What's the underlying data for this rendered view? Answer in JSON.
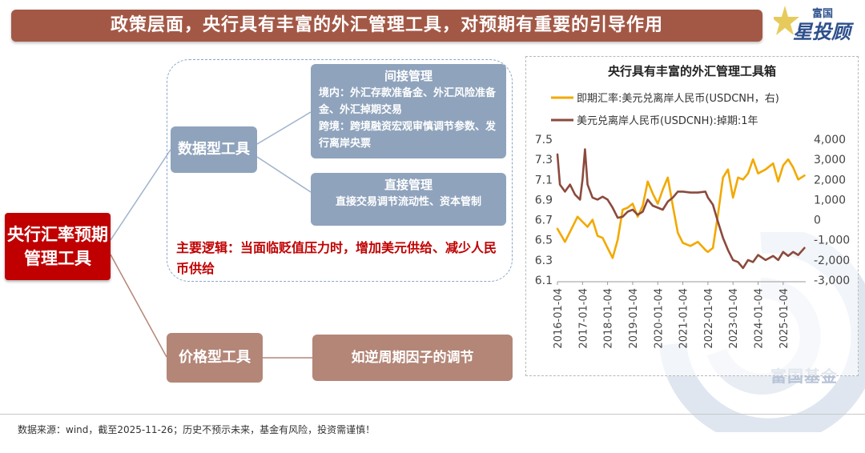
{
  "header": {
    "title": "政策层面，央行具有丰富的外汇管理工具，对预期有重要的引导作用",
    "brand_top": "富国",
    "brand_main": "星投顾"
  },
  "watermark": {
    "text": "富国基金"
  },
  "diagram": {
    "root": "央行汇率预期管理工具",
    "data_tools": "数据型工具",
    "indirect": {
      "title": "间接管理",
      "line1": "境内：外汇存款准备金、外汇风险准备金、外汇掉期交易",
      "line2": "跨境：跨境融资宏观审慎调节参数、发行离岸央票"
    },
    "direct": {
      "title": "直接管理",
      "line1": "直接交易调节流动性、资本管制"
    },
    "logic": "主要逻辑：当面临贬值压力时，增加美元供给、减少人民币供给",
    "price_tools": "价格型工具",
    "countercyclical": "如逆周期因子的调节"
  },
  "colors": {
    "banner": "#a35846",
    "root": "#c00000",
    "data_box": "#8fa3bc",
    "price_box": "#b38677",
    "forward_line": "#f2a900",
    "swap_line": "#8b4a3c"
  },
  "chart_data": {
    "type": "line",
    "title": "央行具有丰富的外汇管理工具箱",
    "x_ticks": [
      "2016-01-04",
      "2017-01-04",
      "2018-01-04",
      "2019-01-04",
      "2020-01-04",
      "2021-01-04",
      "2022-01-04",
      "2023-01-04",
      "2024-01-04",
      "2025-01-04"
    ],
    "left_axis": {
      "ticks": [
        "7.5",
        "7.3",
        "7.1",
        "6.9",
        "6.7",
        "6.5",
        "6.3",
        "6.1"
      ],
      "range": [
        6.1,
        7.5
      ]
    },
    "right_axis": {
      "ticks": [
        "4,000",
        "3,000",
        "2,000",
        "1,000",
        "0",
        "-1,000",
        "-2,000",
        "-3,000"
      ],
      "range": [
        -3000,
        4000
      ]
    },
    "series": [
      {
        "name": "即期汇率:美元兑离岸人民币(USDCNH，右)",
        "axis": "right",
        "x": [
          2016.0,
          2016.3,
          2016.5,
          2016.8,
          2017.0,
          2017.2,
          2017.4,
          2017.6,
          2017.8,
          2018.0,
          2018.2,
          2018.4,
          2018.6,
          2018.8,
          2019.0,
          2019.2,
          2019.4,
          2019.6,
          2019.8,
          2020.0,
          2020.2,
          2020.4,
          2020.6,
          2020.8,
          2021.0,
          2021.3,
          2021.6,
          2021.9,
          2022.0,
          2022.2,
          2022.4,
          2022.6,
          2022.8,
          2023.0,
          2023.2,
          2023.4,
          2023.6,
          2023.8,
          2024.0,
          2024.3,
          2024.6,
          2024.8,
          2025.0,
          2025.2,
          2025.4,
          2025.6,
          2025.85
        ],
        "values": [
          -450,
          -1100,
          -600,
          150,
          -100,
          -350,
          0,
          -800,
          -900,
          -1400,
          -1900,
          -1000,
          500,
          600,
          800,
          150,
          700,
          1900,
          1300,
          800,
          1500,
          2100,
          700,
          -650,
          -1150,
          -1300,
          -1100,
          -1500,
          -1600,
          -1400,
          250,
          2100,
          2500,
          1100,
          2100,
          2000,
          2300,
          3000,
          2300,
          2500,
          2800,
          1900,
          2700,
          3000,
          2600,
          2000,
          2200
        ]
      },
      {
        "name": "美元兑离岸人民币(USDCNH):掉期:1年",
        "axis": "left",
        "x": [
          2016.0,
          2016.1,
          2016.3,
          2016.5,
          2016.7,
          2016.9,
          2017.0,
          2017.1,
          2017.2,
          2017.4,
          2017.6,
          2017.8,
          2018.0,
          2018.2,
          2018.4,
          2018.6,
          2018.8,
          2019.0,
          2019.2,
          2019.4,
          2019.6,
          2019.8,
          2020.0,
          2020.2,
          2020.4,
          2020.6,
          2020.8,
          2021.0,
          2021.3,
          2021.6,
          2021.9,
          2022.0,
          2022.2,
          2022.4,
          2022.6,
          2022.8,
          2023.0,
          2023.2,
          2023.4,
          2023.6,
          2023.8,
          2024.0,
          2024.3,
          2024.6,
          2024.8,
          2025.0,
          2025.2,
          2025.4,
          2025.6,
          2025.85
        ],
        "values": [
          7.35,
          7.05,
          6.98,
          7.05,
          6.95,
          6.9,
          7.1,
          7.4,
          7.05,
          6.92,
          6.9,
          6.93,
          6.9,
          6.82,
          6.72,
          6.73,
          6.78,
          6.8,
          6.75,
          6.78,
          6.9,
          6.84,
          6.82,
          6.8,
          6.88,
          6.92,
          6.98,
          6.98,
          6.97,
          6.97,
          6.98,
          6.92,
          6.85,
          6.68,
          6.52,
          6.4,
          6.3,
          6.28,
          6.22,
          6.3,
          6.28,
          6.35,
          6.3,
          6.34,
          6.3,
          6.38,
          6.34,
          6.38,
          6.35,
          6.42
        ]
      }
    ],
    "legend_position": "top",
    "grid": false
  },
  "footer": {
    "source": "数据来源：wind，截至2025-11-26；历史不预示未来，基金有风险，投资需谨慎！"
  }
}
